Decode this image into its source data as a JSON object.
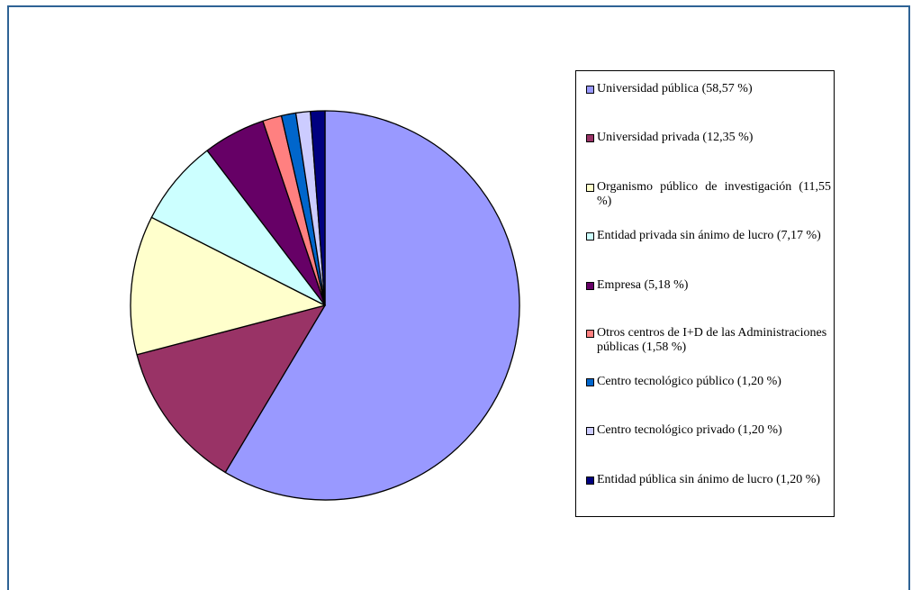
{
  "chart_data": {
    "type": "pie",
    "title": "",
    "start_angle_deg": 0,
    "direction": "clockwise",
    "legend_position": "right",
    "slices": [
      {
        "label": "Universidad pública (58,57 %)",
        "value": 58.57,
        "color": "#9999ff"
      },
      {
        "label": "Universidad privada (12,35 %)",
        "value": 12.35,
        "color": "#993366"
      },
      {
        "label": "Organismo público de investigación (11,55 %)",
        "value": 11.55,
        "color": "#ffffcc"
      },
      {
        "label": "Entidad privada sin ánimo de lucro (7,17 %)",
        "value": 7.17,
        "color": "#ccffff"
      },
      {
        "label": "Empresa (5,18 %)",
        "value": 5.18,
        "color": "#660066"
      },
      {
        "label": "Otros centros de I+D de las Administraciones públicas (1,58 %)",
        "value": 1.58,
        "color": "#ff8080"
      },
      {
        "label": "Centro tecnológico público (1,20 %)",
        "value": 1.2,
        "color": "#0066cc"
      },
      {
        "label": "Centro tecnológico privado (1,20 %)",
        "value": 1.2,
        "color": "#ccccff"
      },
      {
        "label": "Entidad pública sin ánimo de lucro (1,20 %)",
        "value": 1.2,
        "color": "#000080"
      }
    ]
  }
}
